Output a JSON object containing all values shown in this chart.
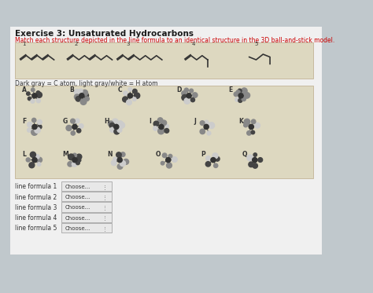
{
  "title": "Exercise 3: Unsaturated Hydrocarbons",
  "subtitle": "Match each structure depicted in the line formula to an identical structure in the 3D ball-and-stick model.",
  "legend_text": "Dark gray = C atom, light gray/white = H atom",
  "bg_color": "#b8d8dc",
  "page_bg": "#c0c8cc",
  "white_bg": "#ffffff",
  "title_color": "#1a1a1a",
  "subtitle_color": "#cc0000",
  "line_formulas": [
    "1",
    "2",
    "3",
    "4",
    "5"
  ],
  "molecule_labels": [
    "A",
    "B",
    "C",
    "D",
    "E",
    "F",
    "G",
    "H",
    "I",
    "J",
    "K",
    "L",
    "M",
    "N",
    "O",
    "P",
    "Q"
  ],
  "dropdown_labels": [
    "line formula 1",
    "line formula 2",
    "line formula 3",
    "line formula 4",
    "line formula 5"
  ],
  "dropdown_text": "Choose...",
  "formula_box_color": "#a8c8d0",
  "dropdown_box_color": "#e8e8e8",
  "dropdown_border_color": "#999999"
}
